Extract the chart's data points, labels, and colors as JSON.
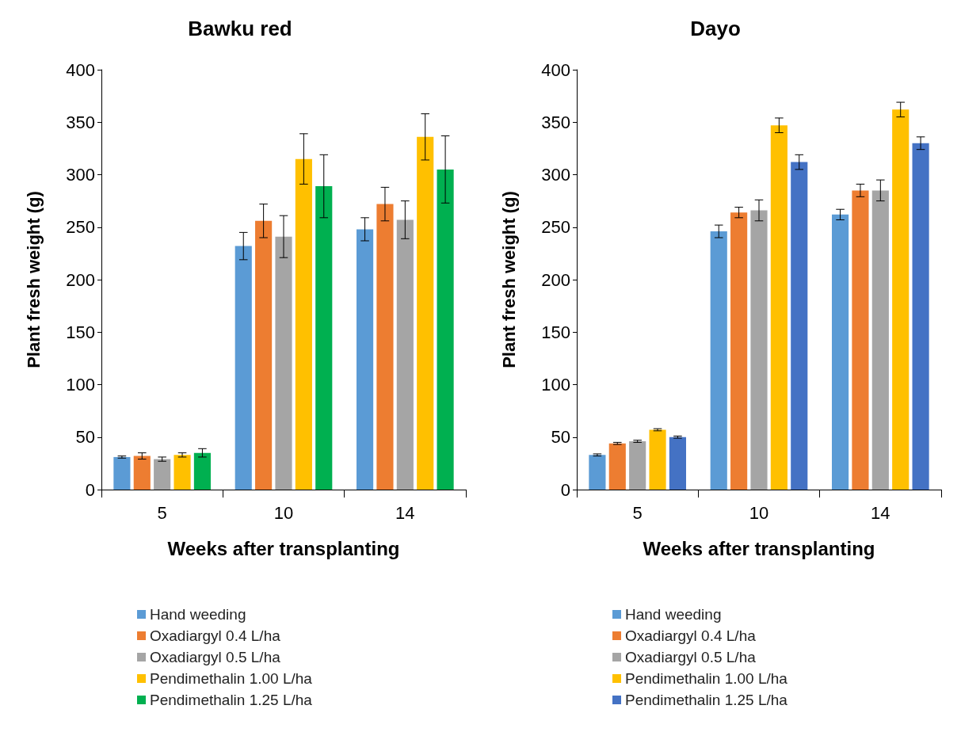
{
  "chart_data": [
    {
      "type": "bar",
      "title": "Bawku red",
      "xlabel": "Weeks after transplanting",
      "ylabel": "Plant fresh weight (g)",
      "categories": [
        "5",
        "10",
        "14"
      ],
      "ylim": [
        0,
        400
      ],
      "yticks": [
        0,
        50,
        100,
        150,
        200,
        250,
        300,
        350,
        400
      ],
      "grid": false,
      "legend": "bottom",
      "series": [
        {
          "name": "Hand weeding",
          "color": "#5b9bd5",
          "values": [
            31,
            232,
            248
          ],
          "errors": [
            1,
            13,
            11
          ]
        },
        {
          "name": "Oxadiargyl 0.4 L/ha",
          "color": "#ed7d31",
          "values": [
            32,
            256,
            272
          ],
          "errors": [
            3,
            16,
            16
          ]
        },
        {
          "name": "Oxadiargyl 0.5 L/ha",
          "color": "#a5a5a5",
          "values": [
            29,
            241,
            257
          ],
          "errors": [
            2,
            20,
            18
          ]
        },
        {
          "name": "Pendimethalin 1.00 L/ha",
          "color": "#ffc000",
          "values": [
            33,
            315,
            336
          ],
          "errors": [
            2,
            24,
            22
          ]
        },
        {
          "name": "Pendimethalin 1.25 L/ha",
          "color": "#00b050",
          "values": [
            35,
            289,
            305
          ],
          "errors": [
            4,
            30,
            32
          ]
        }
      ]
    },
    {
      "type": "bar",
      "title": "Dayo",
      "xlabel": "Weeks after transplanting",
      "ylabel": "Plant fresh weight (g)",
      "categories": [
        "5",
        "10",
        "14"
      ],
      "ylim": [
        0,
        400
      ],
      "yticks": [
        0,
        50,
        100,
        150,
        200,
        250,
        300,
        350,
        400
      ],
      "grid": false,
      "legend": "bottom",
      "series": [
        {
          "name": "Hand weeding",
          "color": "#5b9bd5",
          "values": [
            33,
            246,
            262
          ],
          "errors": [
            1,
            6,
            5
          ]
        },
        {
          "name": "Oxadiargyl 0.4 L/ha",
          "color": "#ed7d31",
          "values": [
            44,
            264,
            285
          ],
          "errors": [
            1,
            5,
            6
          ]
        },
        {
          "name": "Oxadiargyl 0.5 L/ha",
          "color": "#a5a5a5",
          "values": [
            46,
            266,
            285
          ],
          "errors": [
            1,
            10,
            10
          ]
        },
        {
          "name": "Pendimethalin 1.00 L/ha",
          "color": "#ffc000",
          "values": [
            57,
            347,
            362
          ],
          "errors": [
            1,
            7,
            7
          ]
        },
        {
          "name": "Pendimethalin 1.25 L/ha",
          "color": "#4472c4",
          "values": [
            50,
            312,
            330
          ],
          "errors": [
            1,
            7,
            6
          ]
        }
      ]
    }
  ]
}
